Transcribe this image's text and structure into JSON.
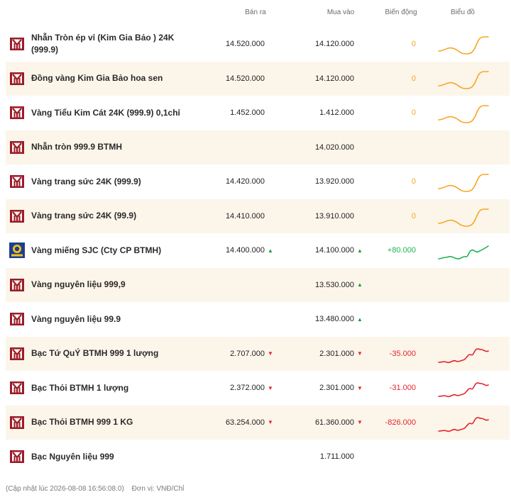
{
  "header": {
    "sell": "Bán ra",
    "buy": "Mua vào",
    "change": "Biến động",
    "chart": "Biểu đồ"
  },
  "colors": {
    "brand": "#9b1c2a",
    "neutral": "#f5a623",
    "up": "#1fb254",
    "down": "#e3262f",
    "alt_row": "#fcf5ea"
  },
  "rows": [
    {
      "icon": "btmh-logo-icon",
      "name": "Nhẫn Tròn ép vỉ (Kim Gia Bảo ) 24K (999.9)",
      "sell": "14.520.000",
      "sell_dir": "",
      "buy": "14.120.000",
      "buy_dir": "",
      "change": "0",
      "trend": "neutral",
      "alt": false
    },
    {
      "icon": "btmh-logo-icon",
      "name": "Đồng vàng Kim Gia Bảo hoa sen",
      "sell": "14.520.000",
      "sell_dir": "",
      "buy": "14.120.000",
      "buy_dir": "",
      "change": "0",
      "trend": "neutral",
      "alt": true
    },
    {
      "icon": "btmh-logo-icon",
      "name": "Vàng Tiểu Kim Cát 24K (999.9) 0,1chỉ",
      "sell": "1.452.000",
      "sell_dir": "",
      "buy": "1.412.000",
      "buy_dir": "",
      "change": "0",
      "trend": "neutral",
      "alt": false
    },
    {
      "icon": "btmh-logo-icon",
      "name": "Nhẫn tròn 999.9 BTMH",
      "sell": "",
      "sell_dir": "",
      "buy": "14.020.000",
      "buy_dir": "",
      "change": "",
      "trend": "none",
      "alt": true
    },
    {
      "icon": "btmh-logo-icon",
      "name": "Vàng trang sức 24K (999.9)",
      "sell": "14.420.000",
      "sell_dir": "",
      "buy": "13.920.000",
      "buy_dir": "",
      "change": "0",
      "trend": "neutral",
      "alt": false
    },
    {
      "icon": "btmh-logo-icon",
      "name": "Vàng trang sức 24K (99.9)",
      "sell": "14.410.000",
      "sell_dir": "",
      "buy": "13.910.000",
      "buy_dir": "",
      "change": "0",
      "trend": "neutral",
      "alt": true
    },
    {
      "icon": "sjc-logo-icon",
      "name": "Vàng miếng SJC (Cty CP BTMH)",
      "sell": "14.400.000",
      "sell_dir": "up",
      "buy": "14.100.000",
      "buy_dir": "up",
      "change": "+80.000",
      "trend": "up",
      "alt": false
    },
    {
      "icon": "btmh-logo-icon",
      "name": "Vàng nguyên liệu 999,9",
      "sell": "",
      "sell_dir": "",
      "buy": "13.530.000",
      "buy_dir": "up",
      "change": "",
      "trend": "none",
      "alt": true
    },
    {
      "icon": "btmh-logo-icon",
      "name": "Vàng nguyên liệu 99.9",
      "sell": "",
      "sell_dir": "",
      "buy": "13.480.000",
      "buy_dir": "up",
      "change": "",
      "trend": "none",
      "alt": false
    },
    {
      "icon": "btmh-logo-icon",
      "name": "Bạc Tứ QuÝ BTMH 999 1 lượng",
      "sell": "2.707.000",
      "sell_dir": "down",
      "buy": "2.301.000",
      "buy_dir": "down",
      "change": "-35.000",
      "trend": "down",
      "alt": true
    },
    {
      "icon": "btmh-logo-icon",
      "name": "Bạc Thỏi BTMH 1 lượng",
      "sell": "2.372.000",
      "sell_dir": "down",
      "buy": "2.301.000",
      "buy_dir": "down",
      "change": "-31.000",
      "trend": "down",
      "alt": false
    },
    {
      "icon": "btmh-logo-icon",
      "name": "Bạc Thỏi BTMH 999 1 KG",
      "sell": "63.254.000",
      "sell_dir": "down",
      "buy": "61.360.000",
      "buy_dir": "down",
      "change": "-826.000",
      "trend": "down",
      "alt": true
    },
    {
      "icon": "btmh-logo-icon",
      "name": "Bạc Nguyên liệu 999",
      "sell": "",
      "sell_dir": "",
      "buy": "1.711.000",
      "buy_dir": "",
      "change": "",
      "trend": "none",
      "alt": false
    }
  ],
  "footer": {
    "updated": "(Cập nhật lúc 2026-08-08 16:56:08.0)",
    "unit": "Đơn vị: VNĐ/Chỉ"
  }
}
